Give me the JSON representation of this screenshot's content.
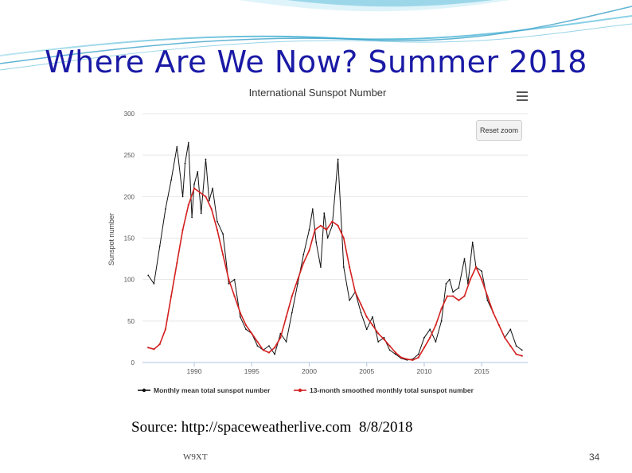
{
  "slide": {
    "title": "Where Are We Now? Summer 2018",
    "source_label": "Source: ",
    "source_url": "http://spaceweatherlive.com",
    "source_date": "8/8/2018",
    "footer_left": "W9XT",
    "page_number": "34"
  },
  "colors": {
    "title": "#1a1aa6",
    "wave": "#3aa0c8",
    "monthly_series": "#111111",
    "smoothed_series": "#d42020",
    "grid": "#e6e6e6"
  },
  "ui": {
    "reset_zoom_label": "Reset zoom",
    "menu_icon": "hamburger-menu-icon"
  },
  "chart_data": {
    "type": "line",
    "title": "International Sunspot Number",
    "xlabel": "",
    "ylabel": "Sunspot number",
    "xlim": [
      1985.5,
      2019.0
    ],
    "ylim": [
      0,
      300
    ],
    "x_ticks": [
      1990,
      1995,
      2000,
      2005,
      2010,
      2015
    ],
    "x_tick_labels": [
      "1990",
      "1995",
      "2000",
      "2005",
      "2010",
      "2015"
    ],
    "y_ticks": [
      0,
      50,
      100,
      150,
      200,
      250,
      300
    ],
    "grid": true,
    "legend_position": "bottom",
    "series": [
      {
        "name": "Monthly mean total sunspot number",
        "color": "#111111",
        "marker": "dot",
        "x": [
          1986.0,
          1986.5,
          1987.0,
          1987.5,
          1988.0,
          1988.5,
          1989.0,
          1989.2,
          1989.5,
          1989.8,
          1990.0,
          1990.3,
          1990.6,
          1991.0,
          1991.3,
          1991.6,
          1992.0,
          1992.5,
          1993.0,
          1993.5,
          1994.0,
          1994.5,
          1995.0,
          1995.5,
          1996.0,
          1996.5,
          1997.0,
          1997.5,
          1998.0,
          1998.5,
          1999.0,
          1999.5,
          2000.0,
          2000.3,
          2000.6,
          2001.0,
          2001.3,
          2001.6,
          2002.0,
          2002.5,
          2003.0,
          2003.5,
          2004.0,
          2004.5,
          2005.0,
          2005.5,
          2006.0,
          2006.5,
          2007.0,
          2007.5,
          2008.0,
          2008.5,
          2009.0,
          2009.5,
          2010.0,
          2010.5,
          2011.0,
          2011.5,
          2011.9,
          2012.2,
          2012.5,
          2013.0,
          2013.5,
          2013.8,
          2014.2,
          2014.5,
          2015.0,
          2015.5,
          2016.0,
          2016.5,
          2017.0,
          2017.5,
          2018.0,
          2018.5
        ],
        "y": [
          105,
          95,
          140,
          185,
          220,
          260,
          200,
          240,
          265,
          175,
          215,
          230,
          180,
          245,
          195,
          210,
          170,
          155,
          95,
          100,
          55,
          40,
          35,
          20,
          15,
          20,
          10,
          35,
          25,
          60,
          95,
          130,
          160,
          185,
          145,
          115,
          180,
          150,
          165,
          245,
          115,
          75,
          85,
          60,
          40,
          55,
          25,
          30,
          15,
          10,
          5,
          3,
          4,
          10,
          30,
          40,
          25,
          50,
          95,
          100,
          85,
          90,
          125,
          95,
          145,
          115,
          110,
          75,
          60,
          45,
          30,
          40,
          20,
          15
        ]
      },
      {
        "name": "13-month smoothed monthly total sunspot number",
        "color": "#d42020",
        "marker": "dot",
        "x": [
          1986.0,
          1986.5,
          1987.0,
          1987.5,
          1988.0,
          1988.5,
          1989.0,
          1989.5,
          1990.0,
          1990.5,
          1991.0,
          1991.5,
          1992.0,
          1992.5,
          1993.0,
          1993.5,
          1994.0,
          1994.5,
          1995.0,
          1995.5,
          1996.0,
          1996.5,
          1997.0,
          1997.5,
          1998.0,
          1998.5,
          1999.0,
          1999.5,
          2000.0,
          2000.5,
          2001.0,
          2001.5,
          2002.0,
          2002.5,
          2003.0,
          2003.5,
          2004.0,
          2004.5,
          2005.0,
          2005.5,
          2006.0,
          2006.5,
          2007.0,
          2007.5,
          2008.0,
          2008.5,
          2009.0,
          2009.5,
          2010.0,
          2010.5,
          2011.0,
          2011.5,
          2012.0,
          2012.5,
          2013.0,
          2013.5,
          2014.0,
          2014.5,
          2015.0,
          2015.5,
          2016.0,
          2016.5,
          2017.0,
          2017.5,
          2018.0,
          2018.5
        ],
        "y": [
          18,
          16,
          22,
          40,
          80,
          120,
          160,
          190,
          210,
          205,
          200,
          185,
          160,
          130,
          100,
          80,
          60,
          45,
          35,
          25,
          15,
          12,
          18,
          30,
          55,
          80,
          100,
          120,
          135,
          160,
          165,
          160,
          170,
          165,
          150,
          115,
          85,
          70,
          55,
          45,
          35,
          28,
          20,
          12,
          6,
          4,
          3,
          6,
          18,
          30,
          45,
          65,
          80,
          80,
          75,
          80,
          100,
          115,
          100,
          80,
          60,
          45,
          30,
          20,
          10,
          8
        ]
      }
    ]
  }
}
